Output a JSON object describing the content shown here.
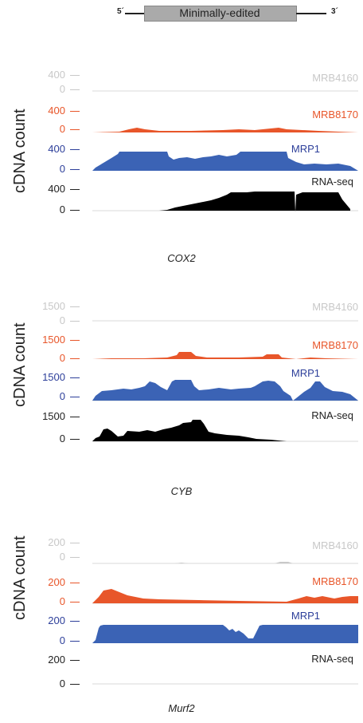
{
  "legend": {
    "left_label": "5´",
    "box_label": "Minimally-edited",
    "right_label": "3´",
    "box_color": "#aaaaaa"
  },
  "y_axis_label": "cDNA count",
  "colors": {
    "MRB4160": "#c8c8c8",
    "MRB8170": "#e8562a",
    "MRP1": "#3b63b5",
    "RNA-seq": "#000000",
    "MRP1_text": "#2d3f9a"
  },
  "panels": [
    {
      "gene": "COX2",
      "tracks": [
        {
          "name": "MRB4160",
          "tick_high": "400",
          "tick_low": "0"
        },
        {
          "name": "MRB8170",
          "tick_high": "400",
          "tick_low": "0"
        },
        {
          "name": "MRP1",
          "tick_high": "400",
          "tick_low": "0"
        },
        {
          "name": "RNA-seq",
          "tick_high": "400",
          "tick_low": "0"
        }
      ]
    },
    {
      "gene": "CYB",
      "tracks": [
        {
          "name": "MRB4160",
          "tick_high": "1500",
          "tick_low": "0"
        },
        {
          "name": "MRB8170",
          "tick_high": "1500",
          "tick_low": "0"
        },
        {
          "name": "MRP1",
          "tick_high": "1500",
          "tick_low": "0"
        },
        {
          "name": "RNA-seq",
          "tick_high": "1500",
          "tick_low": "0"
        }
      ]
    },
    {
      "gene": "Murf2",
      "tracks": [
        {
          "name": "MRB4160",
          "tick_high": "200",
          "tick_low": "0"
        },
        {
          "name": "MRB8170",
          "tick_high": "200",
          "tick_low": "0"
        },
        {
          "name": "MRP1",
          "tick_high": "200",
          "tick_low": "0"
        },
        {
          "name": "RNA-seq",
          "tick_high": "200",
          "tick_low": "0"
        }
      ]
    }
  ]
}
